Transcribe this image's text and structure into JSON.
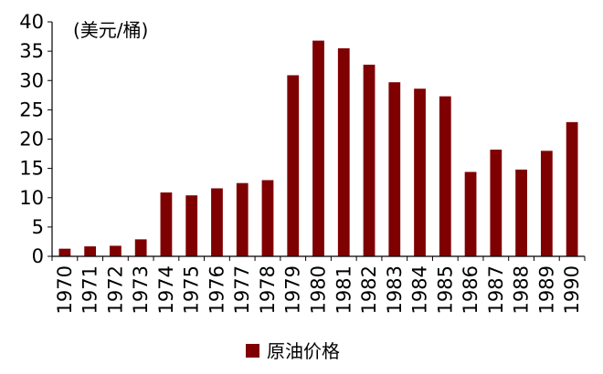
{
  "chart_data": {
    "type": "bar",
    "title": "",
    "xlabel": "",
    "ylabel": "",
    "unit_label": "(美元/桶)",
    "ylim": [
      0,
      40
    ],
    "yticks": [
      0,
      5,
      10,
      15,
      20,
      25,
      30,
      35,
      40
    ],
    "grid": false,
    "legend_position": "bottom",
    "categories": [
      "1970",
      "1971",
      "1972",
      "1973",
      "1974",
      "1975",
      "1976",
      "1977",
      "1978",
      "1979",
      "1980",
      "1981",
      "1982",
      "1983",
      "1984",
      "1985",
      "1986",
      "1987",
      "1988",
      "1989",
      "1990"
    ],
    "series": [
      {
        "name": "原油价格",
        "color": "#7f0000",
        "values": [
          1.3,
          1.7,
          1.8,
          2.9,
          10.9,
          10.4,
          11.6,
          12.5,
          13.0,
          30.9,
          36.8,
          35.5,
          32.7,
          29.7,
          28.6,
          27.3,
          14.4,
          18.2,
          14.8,
          18.0,
          22.9
        ]
      }
    ]
  }
}
